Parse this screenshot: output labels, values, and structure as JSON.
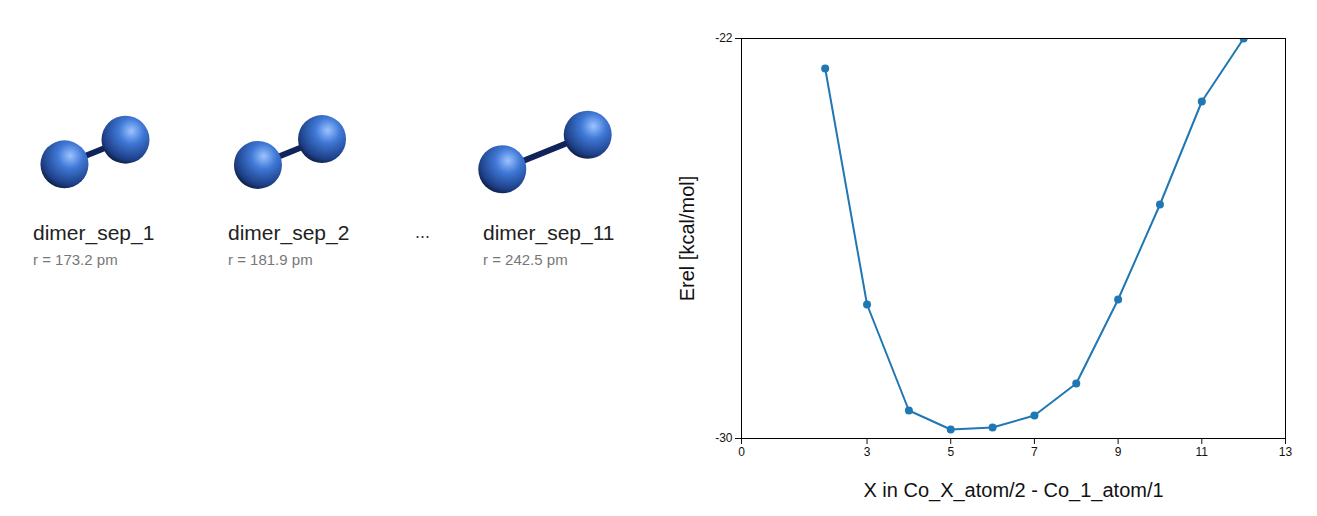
{
  "chart_data": {
    "type": "line",
    "xlabel": "X in Co_X_atom/2 - Co_1_atom/1",
    "ylabel": "Erel [kcal/mol]",
    "x": [
      2,
      3,
      4,
      5,
      6,
      7,
      8,
      9,
      10,
      11,
      12
    ],
    "values": [
      -22.6,
      -27.32,
      -29.44,
      -29.82,
      -29.78,
      -29.54,
      -28.9,
      -27.22,
      -25.32,
      -23.26,
      -22.0
    ],
    "color": "#1f77b4",
    "marker": "circle",
    "xlim": [
      0,
      13
    ],
    "xticks": [
      0,
      3,
      5,
      7,
      9,
      11,
      13
    ],
    "ylim": [
      -30,
      -22
    ],
    "yticks": [
      -30,
      -22
    ],
    "grid": false
  },
  "structures": [
    {
      "name": "dimer_sep_1",
      "r": 173.2,
      "r_label": "r = 173.2 pm"
    },
    {
      "name": "dimer_sep_2",
      "r": 181.9,
      "r_label": "r = 181.9 pm"
    },
    {
      "name": "dimer_sep_11",
      "r": 242.5,
      "r_label": "r = 242.5 pm"
    }
  ],
  "ellipsis": "..."
}
